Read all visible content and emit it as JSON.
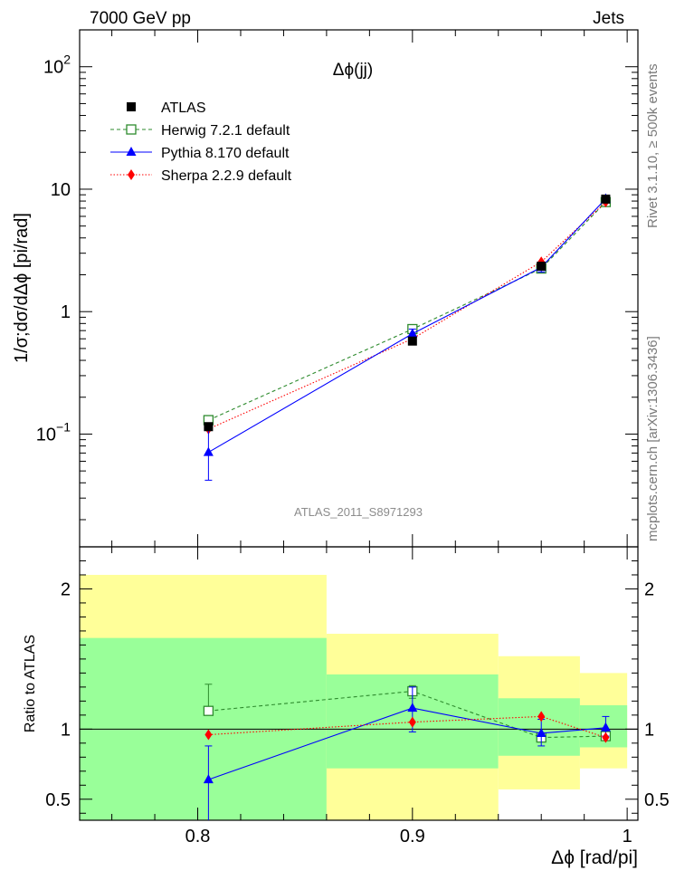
{
  "header": {
    "left": "7000 GeV pp",
    "right": "Jets"
  },
  "side_text": {
    "rivet": "Rivet 3.1.10, ≥ 500k events",
    "mcplots": "mcplots.cern.ch [arXiv:1306.3436]"
  },
  "chart_data": {
    "type": "scatter",
    "title": "Δϕ(jj)",
    "analysis_label": "ATLAS_2011_S8971293",
    "xlabel": "Δϕ [rad/pi]",
    "xlim": [
      0.745,
      1.005
    ],
    "x_ticks": [
      "0.8",
      "0.9",
      "1"
    ],
    "x": [
      0.805,
      0.9,
      0.96,
      0.99
    ],
    "main": {
      "ylabel": "1/σ;dσ/dΔϕ [pi/rad]",
      "yscale": "log",
      "ylim": [
        0.012,
        200
      ],
      "y_ticks": [
        {
          "value": 0.1,
          "base": "10",
          "exp": "−1"
        },
        {
          "value": 1,
          "base": "1",
          "exp": ""
        },
        {
          "value": 10,
          "base": "10",
          "exp": ""
        },
        {
          "value": 100,
          "base": "10",
          "exp": "2"
        }
      ],
      "series": [
        {
          "name": "ATLAS",
          "color": "#000000",
          "marker": "square-filled",
          "line": "none",
          "values": [
            0.115,
            0.575,
            2.35,
            8.3
          ]
        },
        {
          "name": "Herwig 7.2.1 default",
          "color": "#2e8b2e",
          "marker": "square-open",
          "line": "dashed",
          "values": [
            0.13,
            0.72,
            2.25,
            7.85
          ]
        },
        {
          "name": "Pythia 8.170 default",
          "color": "#0000ff",
          "marker": "triangle",
          "line": "solid",
          "values": [
            0.071,
            0.66,
            2.3,
            8.35
          ],
          "err_low": [
            0.042,
            0.6,
            2.1,
            7.9
          ],
          "err_high": [
            0.11,
            0.72,
            2.5,
            8.8
          ]
        },
        {
          "name": "Sherpa 2.2.9 default",
          "color": "#ff0000",
          "marker": "diamond",
          "line": "dotted",
          "values": [
            0.11,
            0.6,
            2.55,
            7.85
          ]
        }
      ]
    },
    "ratio": {
      "ylabel": "Ratio to ATLAS",
      "ylim": [
        0.35,
        2.3
      ],
      "y_ticks": [
        "0.5",
        "1",
        "2"
      ],
      "y_tick_values": [
        0.5,
        1,
        2
      ],
      "bands": [
        {
          "x0": 0.745,
          "x1": 0.86,
          "inner": [
            0.35,
            1.65
          ],
          "outer": [
            0.35,
            2.1
          ]
        },
        {
          "x0": 0.86,
          "x1": 0.94,
          "inner": [
            0.72,
            1.39
          ],
          "outer": [
            0.35,
            1.68
          ]
        },
        {
          "x0": 0.94,
          "x1": 0.978,
          "inner": [
            0.81,
            1.22
          ],
          "outer": [
            0.57,
            1.52
          ]
        },
        {
          "x0": 0.978,
          "x1": 1.0,
          "inner": [
            0.87,
            1.17
          ],
          "outer": [
            0.72,
            1.4
          ]
        }
      ],
      "series": [
        {
          "name": "Herwig 7.2.1 default",
          "values": [
            1.13,
            1.27,
            0.94,
            0.95
          ],
          "err_low": [
            null,
            1.22,
            null,
            null
          ],
          "err_high": [
            1.32,
            1.31,
            null,
            null
          ]
        },
        {
          "name": "Pythia 8.170 default",
          "values": [
            0.64,
            1.15,
            0.97,
            1.01
          ],
          "err_low": [
            0.35,
            0.98,
            0.88,
            0.95
          ],
          "err_high": [
            0.88,
            1.3,
            1.07,
            1.09
          ]
        },
        {
          "name": "Sherpa 2.2.9 default",
          "values": [
            0.96,
            1.05,
            1.09,
            0.94
          ],
          "err_low": [
            null,
            null,
            null,
            null
          ],
          "err_high": [
            null,
            null,
            null,
            null
          ]
        }
      ]
    }
  }
}
